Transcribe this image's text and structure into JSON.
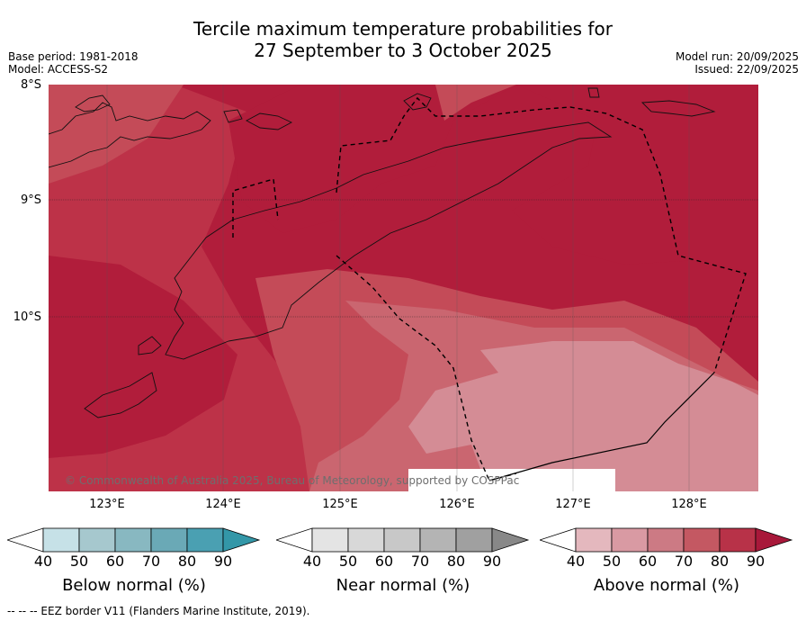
{
  "title_line1": "Tercile maximum temperature probabilities for",
  "title_line2": "27 September to 3 October 2025",
  "base_period": "Base period: 1981-2018",
  "model": "Model: ACCESS-S2",
  "model_run": "Model run: 20/09/2025",
  "issued": "Issued: 22/09/2025",
  "lat_labels": [
    "8°S",
    "9°S",
    "10°S"
  ],
  "lon_labels": [
    "123°E",
    "124°E",
    "125°E",
    "126°E",
    "127°E",
    "128°E"
  ],
  "copyright": "© Commonwealth of Australia 2025, Bureau of Meteorology, supported by COSPPac",
  "legends": {
    "below": {
      "label": "Below normal (%)",
      "ticks": [
        "40",
        "50",
        "60",
        "70",
        "80",
        "90"
      ],
      "colors": [
        "#c6e1e7",
        "#a6c8ce",
        "#88b8c1",
        "#6aa9b6",
        "#4aa0b2",
        "#3397a8"
      ]
    },
    "near": {
      "label": "Near normal (%)",
      "ticks": [
        "40",
        "50",
        "60",
        "70",
        "80",
        "90"
      ],
      "colors": [
        "#e4e4e4",
        "#d8d8d8",
        "#c8c8c8",
        "#b4b4b4",
        "#a0a0a0",
        "#888888"
      ]
    },
    "above": {
      "label": "Above normal (%)",
      "ticks": [
        "40",
        "50",
        "60",
        "70",
        "80",
        "90"
      ],
      "colors": [
        "#e4b8be",
        "#d99aa3",
        "#cc7a84",
        "#c45862",
        "#b83248",
        "#a8183a"
      ]
    }
  },
  "footer": "-- -- -- EEZ border V11 (Flanders Marine Institute, 2019).",
  "map_colors": {
    "base": "#b11d3b",
    "band90a": "#bd3248",
    "band80": "#c44b58",
    "band70": "#ca6670",
    "band60": "#d48c95"
  }
}
